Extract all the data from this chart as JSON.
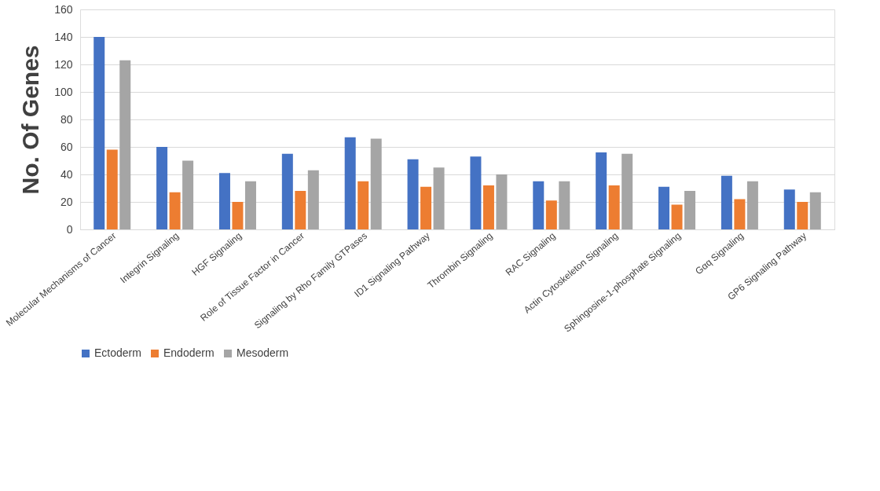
{
  "chart_data": {
    "type": "bar",
    "ylabel": "No. Of Genes",
    "categories": [
      "Molecular Mechanisms of Cancer",
      "Integrin Signaling",
      "HGF Signaling",
      "Role of Tissue Factor in Cancer",
      "Signaling by Rho Family GTPases",
      "ID1 Signaling Pathway",
      "Thrombin Signaling",
      "RAC Signaling",
      "Actin Cytoskeleton Signaling",
      "Sphingosine-1-phosphate Signaling",
      "Gαq Signaling",
      "GP6 Signaling Pathway"
    ],
    "series": [
      {
        "name": "Ectoderm",
        "color": "#4472c4",
        "values": [
          140,
          60,
          41,
          55,
          67,
          51,
          53,
          35,
          56,
          31,
          39,
          29
        ]
      },
      {
        "name": "Endoderm",
        "color": "#ed7d31",
        "values": [
          58,
          27,
          20,
          28,
          35,
          31,
          32,
          21,
          32,
          18,
          22,
          20
        ]
      },
      {
        "name": "Mesoderm",
        "color": "#a5a5a5",
        "values": [
          123,
          50,
          35,
          43,
          66,
          45,
          40,
          35,
          55,
          28,
          35,
          27
        ]
      }
    ],
    "ylim": [
      0,
      160
    ],
    "yticks": [
      0,
      20,
      40,
      60,
      80,
      100,
      120,
      140,
      160
    ],
    "grid": "y",
    "legend": "bottom"
  }
}
